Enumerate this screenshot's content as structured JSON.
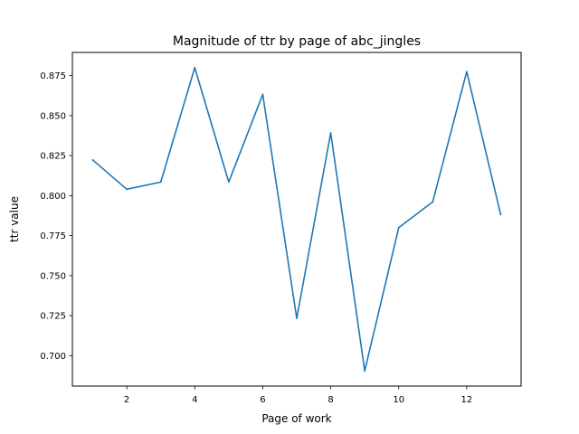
{
  "chart_data": {
    "type": "line",
    "title": "Magnitude of ttr by page of abc_jingles",
    "xlabel": "Page of work",
    "ylabel": "ttr value",
    "x": [
      1,
      2,
      3,
      4,
      5,
      6,
      7,
      8,
      9,
      10,
      11,
      12,
      13
    ],
    "series": [
      {
        "values": [
          0.8223,
          0.804,
          0.8085,
          0.88,
          0.8085,
          0.8633,
          0.7233,
          0.8392,
          0.6905,
          0.78,
          0.7961,
          0.8775,
          0.7882
        ],
        "color": "#1f77b4"
      }
    ],
    "xlim": [
      0.4,
      13.6
    ],
    "ylim": [
      0.681,
      0.8895
    ],
    "xticks": [
      "2",
      "4",
      "6",
      "8",
      "10",
      "12"
    ],
    "yticks": [
      "0.700",
      "0.725",
      "0.750",
      "0.775",
      "0.800",
      "0.825",
      "0.850",
      "0.875"
    ],
    "grid": false,
    "legend": "none"
  }
}
